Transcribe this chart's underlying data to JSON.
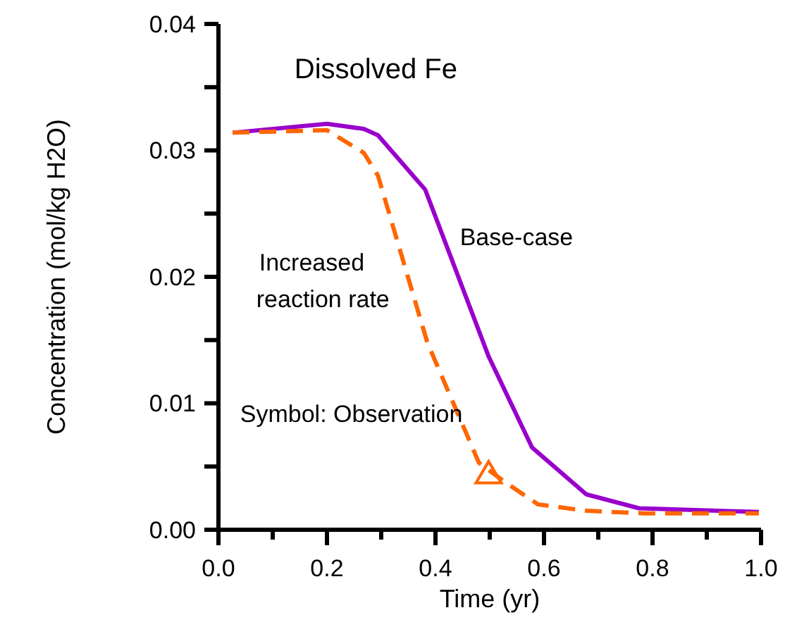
{
  "chart_data": {
    "type": "line",
    "title": "Dissolved Fe",
    "xlabel": "Time (yr)",
    "ylabel": "Concentration (mol/kg H2O)",
    "xlim": [
      0,
      1
    ],
    "ylim": [
      0,
      0.04
    ],
    "xticks": [
      {
        "value": 0,
        "label": "0.0"
      },
      {
        "value": 0.1,
        "label": null
      },
      {
        "value": 0.2,
        "label": "0.2"
      },
      {
        "value": 0.3,
        "label": null
      },
      {
        "value": 0.4,
        "label": "0.4"
      },
      {
        "value": 0.5,
        "label": null
      },
      {
        "value": 0.6,
        "label": "0.6"
      },
      {
        "value": 0.7,
        "label": null
      },
      {
        "value": 0.8,
        "label": "0.8"
      },
      {
        "value": 0.9,
        "label": null
      },
      {
        "value": 1,
        "label": "1.0"
      }
    ],
    "yticks": [
      {
        "value": 0,
        "label": "0.00"
      },
      {
        "value": 0.005,
        "label": null
      },
      {
        "value": 0.01,
        "label": "0.01"
      },
      {
        "value": 0.015,
        "label": null
      },
      {
        "value": 0.02,
        "label": "0.02"
      },
      {
        "value": 0.025,
        "label": null
      },
      {
        "value": 0.03,
        "label": "0.03"
      },
      {
        "value": 0.035,
        "label": null
      },
      {
        "value": 0.04,
        "label": "0.04"
      }
    ],
    "grid": false,
    "annotations": [
      "Symbol: Observation"
    ],
    "series": [
      {
        "name": "Base-case",
        "color": "#9900cc",
        "line_style": "solid",
        "marker": "none",
        "x": [
          0.026,
          0.2,
          0.268,
          0.294,
          0.381,
          0.498,
          0.578,
          0.678,
          0.775,
          0.996
        ],
        "values": [
          0.0314,
          0.0321,
          0.0317,
          0.0312,
          0.0269,
          0.0137,
          0.0065,
          0.0028,
          0.0017,
          0.0014
        ]
      },
      {
        "name": "Increased reaction rate",
        "color": "#ff6600",
        "line_style": "dashed",
        "marker": "none",
        "x": [
          0.026,
          0.2,
          0.268,
          0.294,
          0.385,
          0.48,
          0.524,
          0.589,
          0.679,
          0.783,
          0.996
        ],
        "values": [
          0.0314,
          0.0316,
          0.0298,
          0.028,
          0.0148,
          0.0053,
          0.0039,
          0.002,
          0.0015,
          0.0013,
          0.0013
        ]
      },
      {
        "type": "scatter",
        "color": "#ff6600",
        "marker": "triangle",
        "x": [
          0.498
        ],
        "values": [
          0.0044
        ]
      }
    ]
  }
}
